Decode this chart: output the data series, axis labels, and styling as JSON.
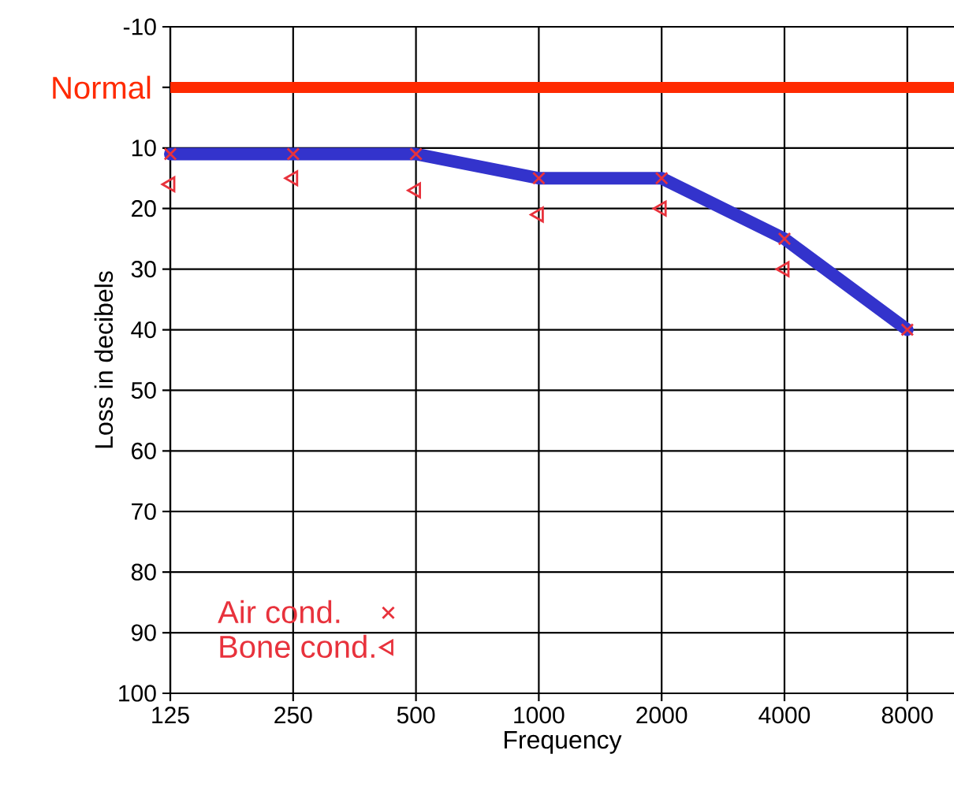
{
  "chart_data": {
    "type": "line",
    "xlabel": "Frequency",
    "ylabel": "Loss in decibels",
    "categories": [
      "125",
      "250",
      "500",
      "1000",
      "2000",
      "4000",
      "8000"
    ],
    "series": [
      {
        "color": "#3333cc",
        "marker": "none",
        "values": [
          11,
          11,
          11,
          15,
          15,
          25,
          40
        ]
      },
      {
        "type": "scatter",
        "name": "Air cond.",
        "color": "#e8323c",
        "marker": "cross",
        "values": [
          11,
          11,
          11,
          15,
          15,
          25,
          40
        ]
      },
      {
        "type": "scatter",
        "name": "Bone cond.",
        "color": "#e8323c",
        "marker": "triangle",
        "values": [
          16,
          15,
          17,
          21,
          20,
          30,
          null
        ]
      }
    ],
    "ylim": [
      100,
      -10
    ],
    "yticks": [
      -10,
      {
        "value": 0,
        "label": null
      },
      10,
      20,
      30,
      40,
      50,
      60,
      70,
      80,
      90,
      100
    ],
    "ref_lines": [
      {
        "axis": "y",
        "value": 0,
        "label": "Normal",
        "color": "#ff2a00"
      }
    ],
    "grid": true,
    "legend": "bottom left"
  }
}
